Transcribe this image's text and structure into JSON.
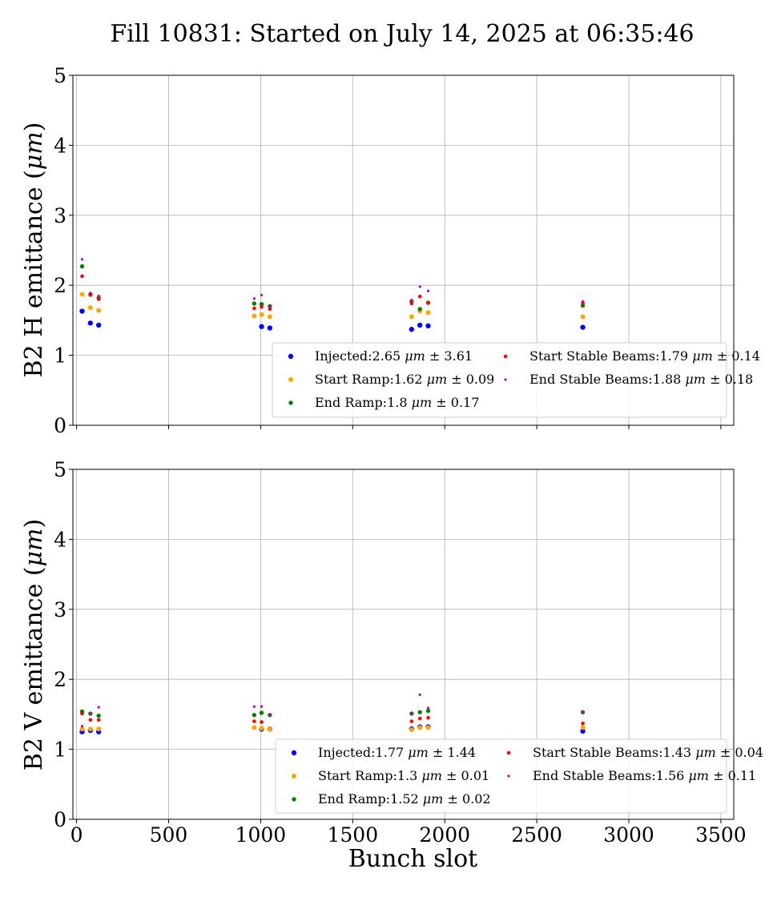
{
  "title": "Fill 10831: Started on July 14, 2025 at 06:35:46",
  "chart_data": [
    {
      "type": "scatter",
      "ylabel": "B2 H emittance (μm)",
      "xlabel": "",
      "xlim": [
        -20,
        3570
      ],
      "ylim": [
        0,
        5
      ],
      "x_ticks": [
        0,
        500,
        1000,
        1500,
        2000,
        2500,
        3000,
        3500
      ],
      "y_ticks": [
        0,
        1,
        2,
        3,
        4,
        5
      ],
      "grid": true,
      "legend_position": "lower-right",
      "series": [
        {
          "name": "Injected",
          "legend": "Injected:2.65 μm ± 3.61",
          "color": "#0000ff",
          "size": 3.2,
          "points": [
            [
              30,
              1.63
            ],
            [
              75,
              1.46
            ],
            [
              120,
              1.43
            ],
            [
              1005,
              1.41
            ],
            [
              1050,
              1.39
            ],
            [
              1820,
              1.37
            ],
            [
              1865,
              1.43
            ],
            [
              1910,
              1.42
            ],
            [
              2750,
              1.4
            ]
          ]
        },
        {
          "name": "Start Ramp",
          "legend": "Start Ramp:1.62 μm ± 0.09",
          "color": "#ffa500",
          "size": 3.0,
          "points": [
            [
              30,
              1.87
            ],
            [
              75,
              1.68
            ],
            [
              120,
              1.64
            ],
            [
              965,
              1.56
            ],
            [
              1005,
              1.58
            ],
            [
              1050,
              1.55
            ],
            [
              1820,
              1.55
            ],
            [
              1865,
              1.63
            ],
            [
              1910,
              1.61
            ],
            [
              2750,
              1.55
            ]
          ]
        },
        {
          "name": "End Ramp",
          "legend": "End Ramp:1.8 μm ± 0.17",
          "color": "#008000",
          "size": 2.7,
          "points": [
            [
              30,
              2.27
            ],
            [
              75,
              1.87
            ],
            [
              120,
              1.82
            ],
            [
              965,
              1.74
            ],
            [
              1005,
              1.73
            ],
            [
              1050,
              1.7
            ],
            [
              1820,
              1.77
            ],
            [
              1865,
              1.66
            ],
            [
              1910,
              1.75
            ],
            [
              2750,
              1.71
            ]
          ]
        },
        {
          "name": "Start Stable Beams",
          "legend": "Start Stable Beams:1.79 μm ± 0.14",
          "color": "#ff0000",
          "size": 2.3,
          "points": [
            [
              30,
              2.13
            ],
            [
              75,
              1.86
            ],
            [
              120,
              1.8
            ],
            [
              965,
              1.67
            ],
            [
              1005,
              1.69
            ],
            [
              1050,
              1.66
            ],
            [
              1820,
              1.74
            ],
            [
              1865,
              1.84
            ],
            [
              1910,
              1.75
            ],
            [
              2750,
              1.75
            ]
          ]
        },
        {
          "name": "End Stable Beams",
          "legend": "End Stable Beams:1.88 μm ± 0.18",
          "color": "#bf00bf",
          "size": 1.6,
          "points": [
            [
              30,
              2.37
            ],
            [
              75,
              1.89
            ],
            [
              120,
              1.85
            ],
            [
              965,
              1.81
            ],
            [
              1005,
              1.86
            ],
            [
              1050,
              1.7
            ],
            [
              1820,
              1.79
            ],
            [
              1865,
              1.98
            ],
            [
              1910,
              1.92
            ],
            [
              2750,
              1.77
            ]
          ]
        }
      ]
    },
    {
      "type": "scatter",
      "ylabel": "B2 V emittance (μm)",
      "xlabel": "Bunch slot",
      "xlim": [
        -20,
        3570
      ],
      "ylim": [
        0,
        5
      ],
      "x_ticks": [
        0,
        500,
        1000,
        1500,
        2000,
        2500,
        3000,
        3500
      ],
      "y_ticks": [
        0,
        1,
        2,
        3,
        4,
        5
      ],
      "grid": true,
      "legend_position": "lower-right",
      "series": [
        {
          "name": "Injected",
          "legend": "Injected:1.77 μm ± 1.44",
          "color": "#0000ff",
          "size": 3.2,
          "points": [
            [
              30,
              1.25
            ],
            [
              75,
              1.27
            ],
            [
              120,
              1.25
            ],
            [
              1005,
              1.29
            ],
            [
              1050,
              1.29
            ],
            [
              1820,
              1.29
            ],
            [
              1865,
              1.32
            ],
            [
              1910,
              1.32
            ],
            [
              2750,
              1.26
            ]
          ]
        },
        {
          "name": "Start Ramp",
          "legend": "Start Ramp:1.3 μm ± 0.01",
          "color": "#ffa500",
          "size": 3.0,
          "points": [
            [
              30,
              1.29
            ],
            [
              75,
              1.29
            ],
            [
              120,
              1.29
            ],
            [
              965,
              1.31
            ],
            [
              1005,
              1.3
            ],
            [
              1050,
              1.29
            ],
            [
              1820,
              1.28
            ],
            [
              1865,
              1.31
            ],
            [
              1910,
              1.31
            ],
            [
              2750,
              1.31
            ]
          ]
        },
        {
          "name": "End Ramp",
          "legend": "End Ramp:1.52 μm ± 0.02",
          "color": "#008000",
          "size": 2.7,
          "points": [
            [
              30,
              1.54
            ],
            [
              75,
              1.51
            ],
            [
              120,
              1.48
            ],
            [
              965,
              1.49
            ],
            [
              1005,
              1.52
            ],
            [
              1050,
              1.49
            ],
            [
              1820,
              1.51
            ],
            [
              1865,
              1.53
            ],
            [
              1910,
              1.55
            ],
            [
              2750,
              1.53
            ]
          ]
        },
        {
          "name": "Start Stable Beams",
          "legend": "Start Stable Beams:1.43 μm ± 0.04",
          "color": "#ff0000",
          "size": 2.3,
          "points": [
            [
              30,
              1.51
            ],
            [
              75,
              1.42
            ],
            [
              120,
              1.42
            ],
            [
              965,
              1.4
            ],
            [
              1005,
              1.39
            ],
            [
              1820,
              1.4
            ],
            [
              1865,
              1.44
            ],
            [
              1910,
              1.45
            ],
            [
              2750,
              1.37
            ]
          ]
        },
        {
          "name": "End Stable Beams",
          "legend": "End Stable Beams:1.56 μm ± 0.11",
          "color": "#bf00bf",
          "size": 1.6,
          "points": [
            [
              30,
              1.33
            ],
            [
              75,
              1.52
            ],
            [
              120,
              1.6
            ],
            [
              965,
              1.61
            ],
            [
              1005,
              1.61
            ],
            [
              1050,
              1.49
            ],
            [
              1820,
              1.52
            ],
            [
              1865,
              1.78
            ],
            [
              1910,
              1.59
            ],
            [
              2750,
              1.54
            ]
          ]
        }
      ]
    }
  ]
}
